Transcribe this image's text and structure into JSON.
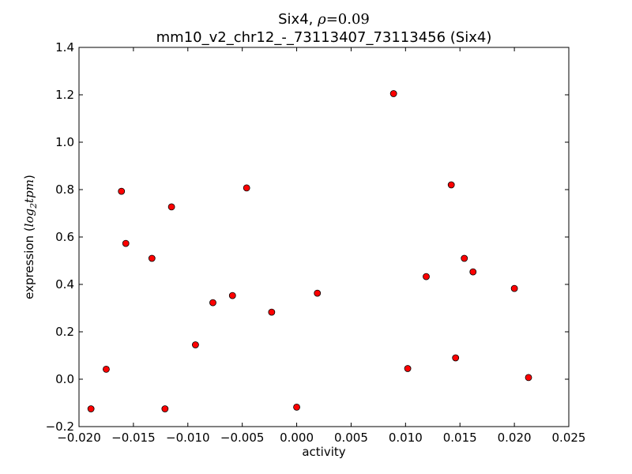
{
  "chart_data": {
    "type": "scatter",
    "title_prefix": "Six4, ",
    "title_rho_symbol": "ρ",
    "title_rho_eq": "=",
    "title_rho_value": "0.09",
    "subtitle": "mm10_v2_chr12_-_73113407_73113456 (Six4)",
    "xlabel": "activity",
    "ylabel_prefix": "expression (",
    "ylabel_log": "log",
    "ylabel_sub": "2",
    "ylabel_tpm": "tpm",
    "ylabel_suffix": ")",
    "xlim": [
      -0.02,
      0.025
    ],
    "ylim": [
      -0.2,
      1.4
    ],
    "x_ticks": [
      -0.02,
      -0.015,
      -0.01,
      -0.005,
      0.0,
      0.005,
      0.01,
      0.015,
      0.02,
      0.025
    ],
    "x_tick_labels": [
      "−0.020",
      "−0.015",
      "−0.010",
      "−0.005",
      "0.000",
      "0.005",
      "0.010",
      "0.015",
      "0.020",
      "0.025"
    ],
    "y_ticks": [
      -0.2,
      0.0,
      0.2,
      0.4,
      0.6,
      0.8,
      1.0,
      1.2,
      1.4
    ],
    "y_tick_labels": [
      "−0.2",
      "0.0",
      "0.2",
      "0.4",
      "0.6",
      "0.8",
      "1.0",
      "1.2",
      "1.4"
    ],
    "grid": false,
    "marker_color": "#ff0000",
    "marker_edge_color": "#000000",
    "points": [
      {
        "x": -0.0189,
        "y": -0.125
      },
      {
        "x": -0.0175,
        "y": 0.042
      },
      {
        "x": -0.0161,
        "y": 0.793
      },
      {
        "x": -0.0157,
        "y": 0.573
      },
      {
        "x": -0.0133,
        "y": 0.51
      },
      {
        "x": -0.0121,
        "y": -0.125
      },
      {
        "x": -0.0115,
        "y": 0.727
      },
      {
        "x": -0.0093,
        "y": 0.145
      },
      {
        "x": -0.0077,
        "y": 0.323
      },
      {
        "x": -0.0059,
        "y": 0.353
      },
      {
        "x": -0.0046,
        "y": 0.807
      },
      {
        "x": -0.0023,
        "y": 0.283
      },
      {
        "x": 0.0,
        "y": -0.118
      },
      {
        "x": 0.0019,
        "y": 0.363
      },
      {
        "x": 0.0089,
        "y": 1.205
      },
      {
        "x": 0.0102,
        "y": 0.045
      },
      {
        "x": 0.0119,
        "y": 0.433
      },
      {
        "x": 0.0142,
        "y": 0.82
      },
      {
        "x": 0.0146,
        "y": 0.09
      },
      {
        "x": 0.0154,
        "y": 0.51
      },
      {
        "x": 0.0162,
        "y": 0.453
      },
      {
        "x": 0.02,
        "y": 0.383
      },
      {
        "x": 0.0213,
        "y": 0.007
      }
    ]
  }
}
